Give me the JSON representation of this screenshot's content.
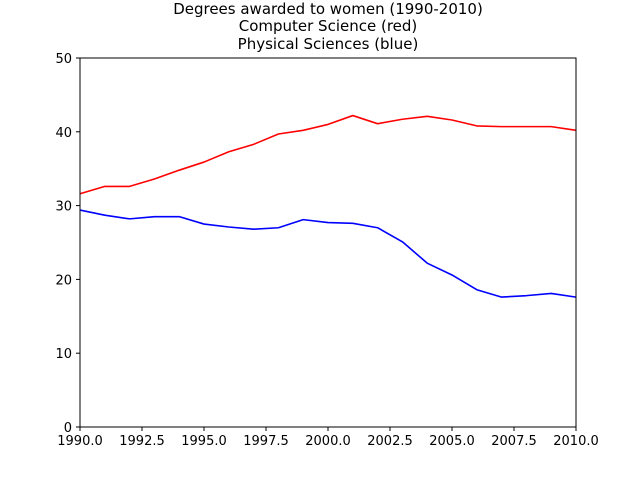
{
  "chart_data": {
    "type": "line",
    "title_lines": [
      "Degrees awarded to women (1990-2010)",
      "Computer Science (red)",
      "Physical Sciences (blue)"
    ],
    "xlabel": "",
    "ylabel": "",
    "xlim": [
      1990,
      2010
    ],
    "ylim": [
      0,
      50
    ],
    "xticks": [
      1990.0,
      1992.5,
      1995.0,
      1997.5,
      2000.0,
      2002.5,
      2005.0,
      2007.5,
      2010.0
    ],
    "xtick_labels": [
      "1990.0",
      "1992.5",
      "1995.0",
      "1997.5",
      "2000.0",
      "2002.5",
      "2005.0",
      "2007.5",
      "2010.0"
    ],
    "yticks": [
      0,
      10,
      20,
      30,
      40,
      50
    ],
    "ytick_labels": [
      "0",
      "10",
      "20",
      "30",
      "40",
      "50"
    ],
    "grid": false,
    "x": [
      1990,
      1991,
      1992,
      1993,
      1994,
      1995,
      1996,
      1997,
      1998,
      1999,
      2000,
      2001,
      2002,
      2003,
      2004,
      2005,
      2006,
      2007,
      2008,
      2009,
      2010
    ],
    "series": [
      {
        "color": "#ff0000",
        "values": [
          31.6,
          32.6,
          32.6,
          33.6,
          34.8,
          35.9,
          37.3,
          38.3,
          39.7,
          40.2,
          41.0,
          42.2,
          41.1,
          41.7,
          42.1,
          41.6,
          40.8,
          40.7,
          40.7,
          40.7,
          40.2
        ]
      },
      {
        "color": "#0000ff",
        "values": [
          29.4,
          28.7,
          28.2,
          28.5,
          28.5,
          27.5,
          27.1,
          26.8,
          27.0,
          28.1,
          27.7,
          27.6,
          27.0,
          25.1,
          22.2,
          20.6,
          18.6,
          17.6,
          17.8,
          18.1,
          17.6
        ]
      }
    ]
  }
}
